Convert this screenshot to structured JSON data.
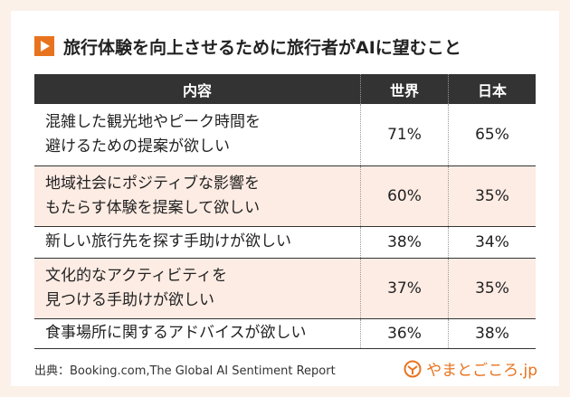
{
  "header": {
    "title": "旅行体験を向上させるために旅行者がAIに望むこと"
  },
  "table": {
    "columns": [
      "内容",
      "世界",
      "日本"
    ],
    "rows": [
      [
        "混雑した観光地やピーク時間を\n避けるための提案が欲しい",
        "71%",
        "65%"
      ],
      [
        "地域社会にポジティブな影響を\nもたらす体験を提案して欲しい",
        "60%",
        "35%"
      ],
      [
        "新しい旅行先を探す手助けが欲しい",
        "38%",
        "34%"
      ],
      [
        "文化的なアクティビティを\n見つける手助けが欲しい",
        "37%",
        "35%"
      ],
      [
        "食事場所に関するアドバイスが欲しい",
        "36%",
        "38%"
      ]
    ]
  },
  "footer": {
    "source": "出典：Booking.com,The Global AI Sentiment Report",
    "brand": "やまとごころ.jp"
  }
}
